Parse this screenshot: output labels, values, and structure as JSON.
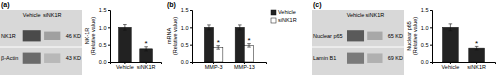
{
  "chart_data": [
    {
      "type": "blot",
      "title": "(a)",
      "categories": [
        "Vehicle",
        "siNK1R"
      ],
      "series": [
        {
          "name": "NK1R",
          "colors": [
            "#4a4a4a",
            "#a0a0a0"
          ]
        },
        {
          "name": "β-Actin",
          "colors": [
            "#6a6a6a",
            "#b8b8b8"
          ]
        }
      ],
      "annotations": [
        "46 KD",
        "43 KD"
      ]
    },
    {
      "type": "bar",
      "categories": [
        "Vehicle",
        "siNK1R"
      ],
      "values": [
        1.0,
        0.38
      ],
      "errors": [
        0.08,
        0.06
      ],
      "color": "#222222",
      "ylabel": "NK-1R\n(Relative value)",
      "ylim": [
        0,
        1.5
      ],
      "yticks": [
        {
          "value": 0.0,
          "label": "0.0"
        },
        0.5,
        {
          "value": 1.0,
          "label": "1.0"
        },
        1.5
      ],
      "annotations": [
        {
          "text": "*",
          "category": "siNK1R"
        }
      ]
    },
    {
      "type": "bar",
      "title": "(b)",
      "categories": [
        "MMP-3",
        "MMP-13"
      ],
      "series": [
        {
          "name": "Vehicle",
          "color": "#222222",
          "values": [
            1.0,
            1.0
          ],
          "errors": [
            0.07,
            0.07
          ]
        },
        {
          "name": "siNK1R",
          "color": "#ffffff",
          "values": [
            0.42,
            0.48
          ],
          "errors": [
            0.05,
            0.05
          ]
        }
      ],
      "ylabel": "mRNA\n(Relative value)",
      "ylim": [
        0,
        1.5
      ],
      "yticks": [
        {
          "value": 0.0,
          "label": "0.0"
        },
        0.5,
        {
          "value": 1.0,
          "label": "1.0"
        },
        1.5
      ],
      "legend": "upper right",
      "annotations": [
        {
          "text": "*",
          "category": "MMP-3",
          "series": "siNK1R"
        },
        {
          "text": "*",
          "category": "MMP-13",
          "series": "siNK1R"
        }
      ]
    },
    {
      "type": "blot",
      "title": "(c)",
      "categories": [
        "Vehicle",
        "siNK1R"
      ],
      "series": [
        {
          "name": "Nuclear p65",
          "colors": [
            "#5a5a5a",
            "#a8a8a8"
          ]
        },
        {
          "name": "Lamin B1",
          "colors": [
            "#7a7a7a",
            "#b0b0b0"
          ]
        }
      ],
      "annotations": [
        "65 KD",
        "69 KD"
      ]
    },
    {
      "type": "bar",
      "categories": [
        "Vehicle",
        "siNK1R"
      ],
      "values": [
        1.0,
        0.4
      ],
      "errors": [
        0.1,
        0.05
      ],
      "color": "#222222",
      "ylabel": "Nuclear p65\n(Relative value)",
      "ylim": [
        0,
        1.5
      ],
      "yticks": [
        {
          "value": 0.0,
          "label": "0.0"
        },
        0.5,
        {
          "value": 1.0,
          "label": "1.0"
        },
        1.5
      ],
      "annotations": [
        {
          "text": "*",
          "category": "siNK1R"
        }
      ]
    }
  ]
}
